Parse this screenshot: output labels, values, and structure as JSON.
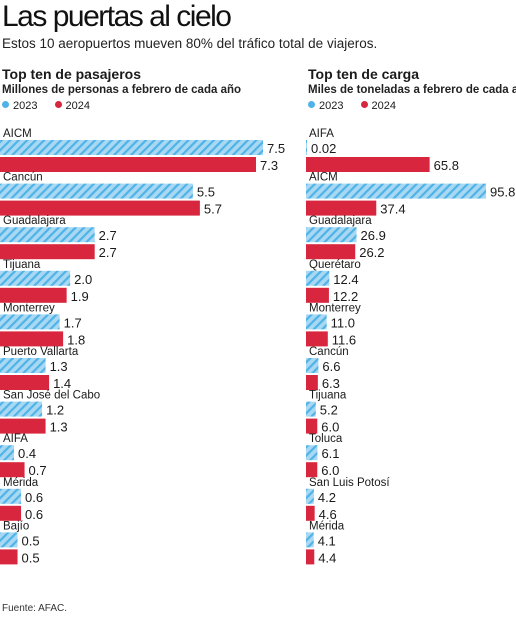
{
  "header": {
    "title": "Las puertas al cielo",
    "subtitle": "Estos 10 aeropuertos mueven 80% del tráfico total de viajeros."
  },
  "colors": {
    "series_2023": "#4fb3e8",
    "series_2023_stripe": "#a9d8f2",
    "series_2024": "#d7263d"
  },
  "chart_data": [
    {
      "type": "bar",
      "title": "Top ten de pasajeros",
      "subtitle": "Millones de personas a febrero de cada año",
      "categories": [
        "AICM",
        "Cancún",
        "Guadalajara",
        "Tijuana",
        "Monterrey",
        "Puerto Vallarta",
        "San José del Cabo",
        "AIFA",
        "Mérida",
        "Bajío"
      ],
      "series": [
        {
          "name": "2023",
          "values": [
            7.5,
            5.5,
            2.7,
            2.0,
            1.7,
            1.3,
            1.2,
            0.4,
            0.6,
            0.5
          ],
          "labels": [
            "7.5",
            "5.5",
            "2.7",
            "2.0",
            "1.7",
            "1.3",
            "1.2",
            "0.4",
            "0.6",
            "0.5"
          ]
        },
        {
          "name": "2024",
          "values": [
            7.3,
            5.7,
            2.7,
            1.9,
            1.8,
            1.4,
            1.3,
            0.7,
            0.6,
            0.5
          ],
          "labels": [
            "7.3",
            "5.7",
            "2.7",
            "1.9",
            "1.8",
            "1.4",
            "1.3",
            "0.7",
            "0.6",
            "0.5"
          ]
        }
      ],
      "xlim": [
        0,
        7.5
      ],
      "orientation": "horizontal",
      "legend": "top-left"
    },
    {
      "type": "bar",
      "title": "Top ten de carga",
      "subtitle": "Miles de toneladas a febrero de cada año",
      "categories": [
        "AIFA",
        "AICM",
        "Guadalajara",
        "Querétaro",
        "Monterrey",
        "Cancún",
        "Tijuana",
        "Toluca",
        "San Luis Potosí",
        "Mérida"
      ],
      "series": [
        {
          "name": "2023",
          "values": [
            0.02,
            95.8,
            26.9,
            12.4,
            11.0,
            6.6,
            5.2,
            6.1,
            4.2,
            4.1
          ],
          "labels": [
            "0.02",
            "95.8",
            "26.9",
            "12.4",
            "11.0",
            "6.6",
            "5.2",
            "6.1",
            "4.2",
            "4.1"
          ]
        },
        {
          "name": "2024",
          "values": [
            65.8,
            37.4,
            26.2,
            12.2,
            11.6,
            6.3,
            6.0,
            6.0,
            4.6,
            4.4
          ],
          "labels": [
            "65.8",
            "37.4",
            "26.2",
            "12.2",
            "11.6",
            "6.3",
            "6.0",
            "6.0",
            "4.6",
            "4.4"
          ]
        }
      ],
      "xlim": [
        0,
        95.8
      ],
      "orientation": "horizontal",
      "legend": "top-left"
    }
  ],
  "source": "Fuente: AFAC."
}
